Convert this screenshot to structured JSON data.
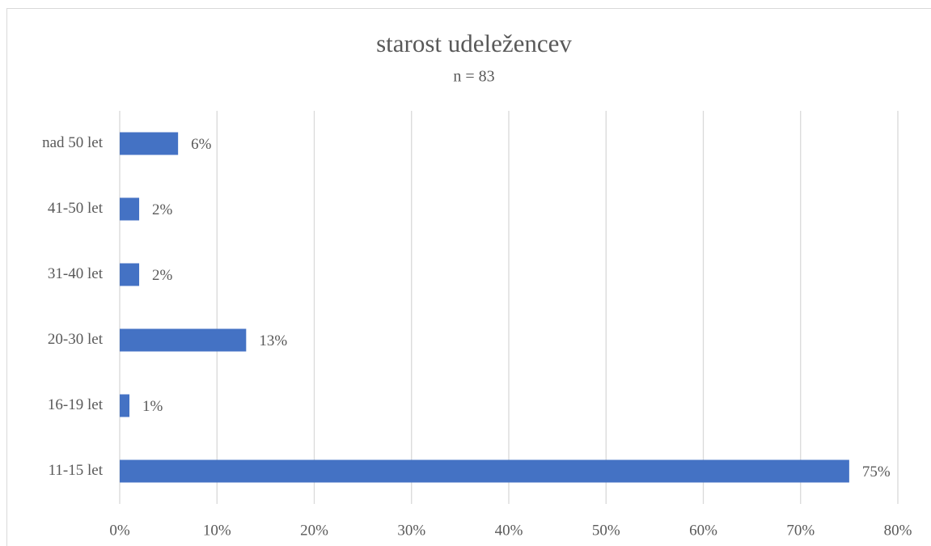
{
  "chart_data": {
    "type": "bar",
    "orientation": "horizontal",
    "title": "starost udeležencev",
    "subtitle": "n = 83",
    "categories": [
      "nad 50 let",
      "41-50 let",
      "31-40 let",
      "20-30 let",
      "16-19 let",
      "11-15 let"
    ],
    "values": [
      6,
      2,
      2,
      13,
      1,
      75
    ],
    "value_labels": [
      "6%",
      "2%",
      "2%",
      "13%",
      "1%",
      "75%"
    ],
    "color": "#4472c4",
    "xlim": [
      0,
      80
    ],
    "xticks": [
      {
        "value": 0,
        "label": "0%"
      },
      {
        "value": 10,
        "label": "10%"
      },
      {
        "value": 20,
        "label": "20%"
      },
      {
        "value": 30,
        "label": "30%"
      },
      {
        "value": 40,
        "label": "40%"
      },
      {
        "value": 50,
        "label": "50%"
      },
      {
        "value": 60,
        "label": "60%"
      },
      {
        "value": 70,
        "label": "70%"
      },
      {
        "value": 80,
        "label": "80%"
      }
    ],
    "grid": true
  }
}
